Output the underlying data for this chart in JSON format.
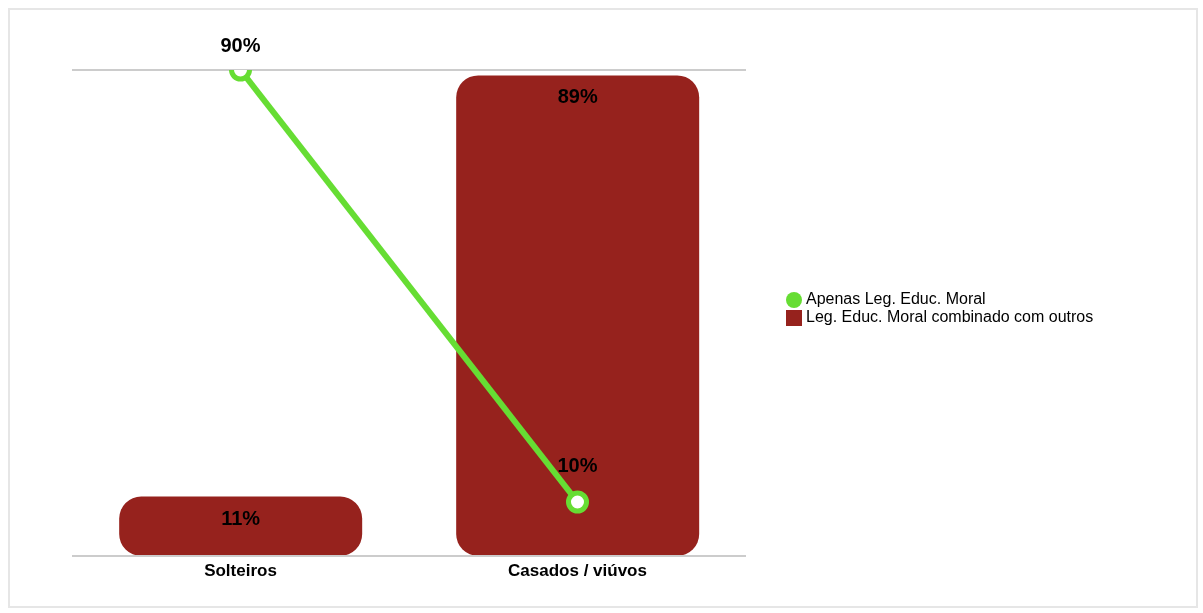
{
  "chart_data": {
    "type": "bar",
    "categories": [
      "Solteiros",
      "Casados / viúvos"
    ],
    "series": [
      {
        "type": "line",
        "name": "Apenas Leg. Educ. Moral",
        "color": "#66dd33",
        "values": [
          90,
          10
        ],
        "value_labels": [
          "90%",
          "10%"
        ]
      },
      {
        "name": "Leg. Educ. Moral combinado com outros",
        "color": "#96221d",
        "values": [
          11,
          89
        ],
        "value_labels": [
          "11%",
          "89%"
        ]
      }
    ],
    "ylim": [
      0,
      90
    ],
    "ref_lines": [
      {
        "axis": "y",
        "value": 90,
        "color": "#cccccc"
      }
    ],
    "tick_labels": "x",
    "legend": "right",
    "marker": "circle"
  }
}
